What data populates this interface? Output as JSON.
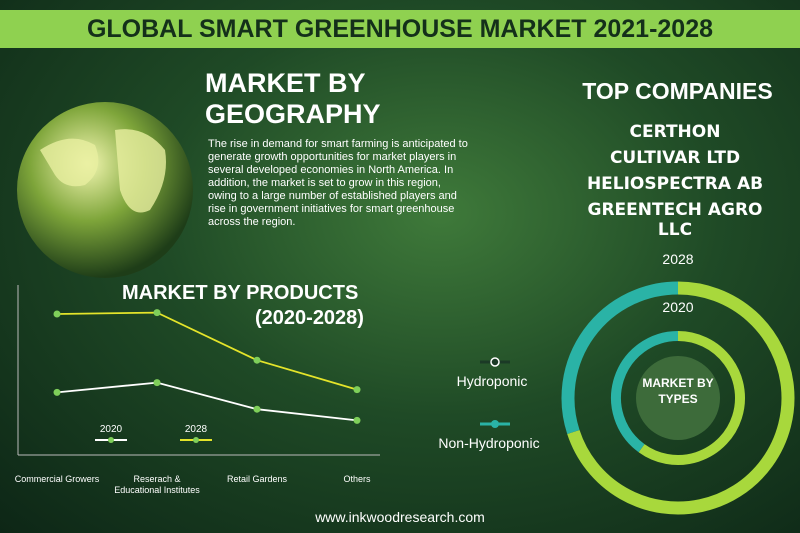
{
  "header": {
    "title": "GLOBAL SMART GREENHOUSE MARKET 2021-2028"
  },
  "geography": {
    "title": "MARKET BY GEOGRAPHY",
    "body": "The rise in demand for smart farming is anticipated to generate growth opportunities for market players in several developed economies in North America. In addition, the market is set to grow in this region, owing to a large number of established players and rise in government initiatives for smart greenhouse across the region."
  },
  "top_companies": {
    "title": "TOP COMPANIES",
    "items": [
      "CERTHON",
      "CULTIVAR LTD",
      "HELIOSPECTRA AB",
      "GREENTECH AGRO LLC"
    ]
  },
  "products_chart": {
    "type": "line",
    "title": "MARKET BY PRODUCTS",
    "subtitle": "(2020-2028)",
    "categories": [
      "Commercial Growers",
      "Reserach & Educational Institutes",
      "Retail Gardens",
      "Others"
    ],
    "series": [
      {
        "name": "2020",
        "color": "#ffffff",
        "values": [
          34,
          41,
          22,
          14
        ]
      },
      {
        "name": "2028",
        "color": "#e4e42a",
        "values": [
          90,
          91,
          57,
          36
        ]
      }
    ],
    "ylim": [
      0,
      100
    ]
  },
  "types_chart": {
    "type": "donut",
    "center_label": "MARKET BY TYPES",
    "categories": [
      "Hydroponic",
      "Non-Hydroponic"
    ],
    "colors": [
      "#a8d83c",
      "#2ab3a6"
    ],
    "rings": [
      {
        "name": "2028",
        "values": [
          70,
          30
        ]
      },
      {
        "name": "2020",
        "values": [
          60,
          40
        ]
      }
    ]
  },
  "footer": {
    "url": "www.inkwoodresearch.com"
  }
}
